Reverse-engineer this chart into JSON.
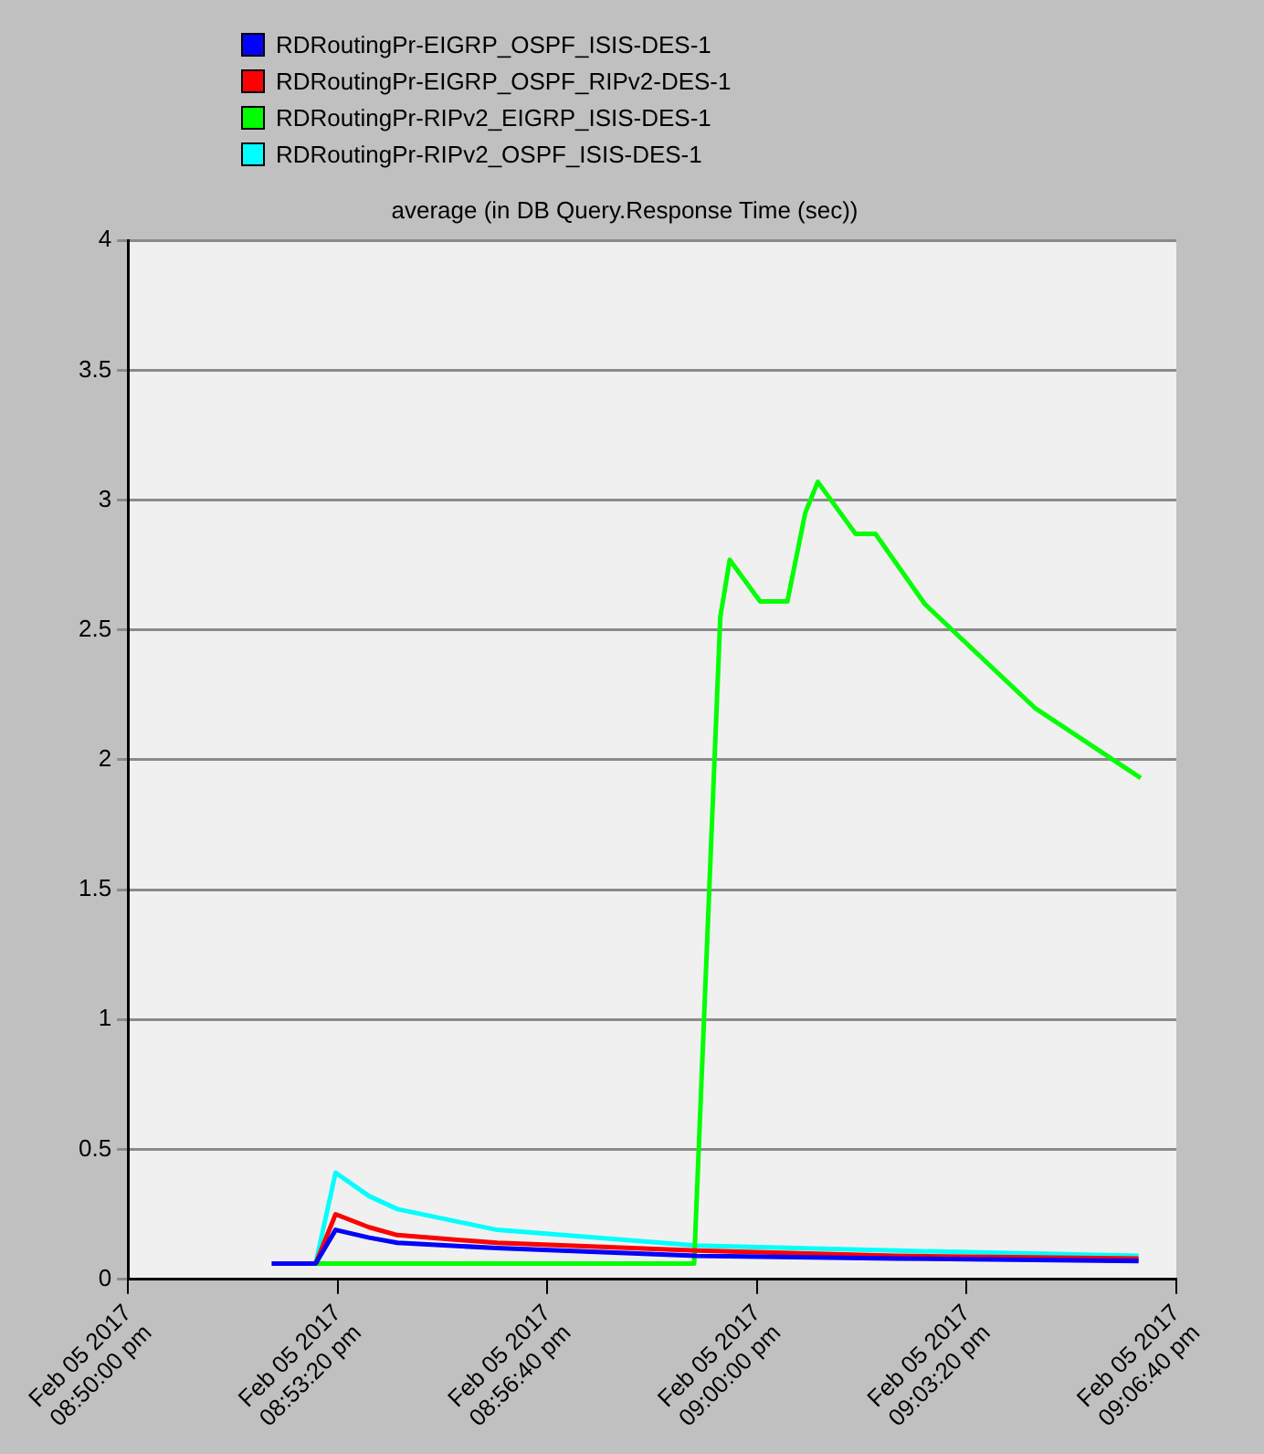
{
  "chart_data": {
    "type": "line",
    "title": "average (in DB Query.Response Time (sec))",
    "xlim": [
      "2017-02-05T20:50:00",
      "2017-02-05T21:06:40"
    ],
    "xticks": [
      {
        "value": "2017-02-05T20:50:00",
        "label": "Feb 05 2017\n08:50:00 pm"
      },
      {
        "value": "2017-02-05T20:53:20",
        "label": "Feb 05 2017\n08:53:20 pm"
      },
      {
        "value": "2017-02-05T20:56:40",
        "label": "Feb 05 2017\n08:56:40 pm"
      },
      {
        "value": "2017-02-05T21:00:00",
        "label": "Feb 05 2017\n09:00:00 pm"
      },
      {
        "value": "2017-02-05T21:03:20",
        "label": "Feb 05 2017\n09:03:20 pm"
      },
      {
        "value": "2017-02-05T21:06:40",
        "label": "Feb 05 2017\n09:06:40 pm"
      }
    ],
    "ylim": [
      0,
      4
    ],
    "yticks": [
      0,
      0.5,
      1,
      1.5,
      2,
      2.5,
      3,
      3.5,
      4
    ],
    "grid": "y",
    "legend": "top left",
    "marker": "none",
    "line_style": "solid",
    "series": [
      {
        "name": "RDRoutingPr-EIGRP_OSPF_ISIS-DES-1",
        "color": "#0000ff",
        "x": [
          "2017-02-05T20:52:17",
          "2017-02-05T20:52:59",
          "2017-02-05T20:53:18",
          "2017-02-05T20:53:50",
          "2017-02-05T20:54:17",
          "2017-02-05T20:55:52",
          "2017-02-05T20:59:02",
          "2017-02-05T21:02:12",
          "2017-02-05T21:06:04"
        ],
        "values": [
          0.06,
          0.06,
          0.19,
          0.16,
          0.14,
          0.12,
          0.09,
          0.08,
          0.07
        ]
      },
      {
        "name": "RDRoutingPr-EIGRP_OSPF_RIPv2-DES-1",
        "color": "#ff0000",
        "x": [
          "2017-02-05T20:52:59",
          "2017-02-05T20:53:18",
          "2017-02-05T20:53:50",
          "2017-02-05T20:54:17",
          "2017-02-05T20:55:52",
          "2017-02-05T20:59:02",
          "2017-02-05T21:02:12",
          "2017-02-05T21:06:04"
        ],
        "values": [
          0.06,
          0.25,
          0.2,
          0.17,
          0.14,
          0.11,
          0.09,
          0.08
        ]
      },
      {
        "name": "RDRoutingPr-RIPv2_EIGRP_ISIS-DES-1",
        "color": "#00ff00",
        "x": [
          "2017-02-05T20:52:59",
          "2017-02-05T20:59:00",
          "2017-02-05T20:59:25",
          "2017-02-05T20:59:34",
          "2017-02-05T21:00:03",
          "2017-02-05T21:00:29",
          "2017-02-05T21:00:46",
          "2017-02-05T21:00:58",
          "2017-02-05T21:01:34",
          "2017-02-05T21:01:53",
          "2017-02-05T21:02:40",
          "2017-02-05T21:04:25",
          "2017-02-05T21:06:06"
        ],
        "values": [
          0.06,
          0.06,
          2.55,
          2.77,
          2.61,
          2.61,
          2.95,
          3.07,
          2.87,
          2.87,
          2.6,
          2.2,
          1.93
        ]
      },
      {
        "name": "RDRoutingPr-RIPv2_OSPF_ISIS-DES-1",
        "color": "#00ffff",
        "x": [
          "2017-02-05T20:52:59",
          "2017-02-05T20:53:18",
          "2017-02-05T20:53:50",
          "2017-02-05T20:54:17",
          "2017-02-05T20:55:52",
          "2017-02-05T20:59:02",
          "2017-02-05T21:02:12",
          "2017-02-05T21:06:04"
        ],
        "values": [
          0.06,
          0.41,
          0.32,
          0.27,
          0.19,
          0.13,
          0.11,
          0.09
        ]
      }
    ]
  }
}
